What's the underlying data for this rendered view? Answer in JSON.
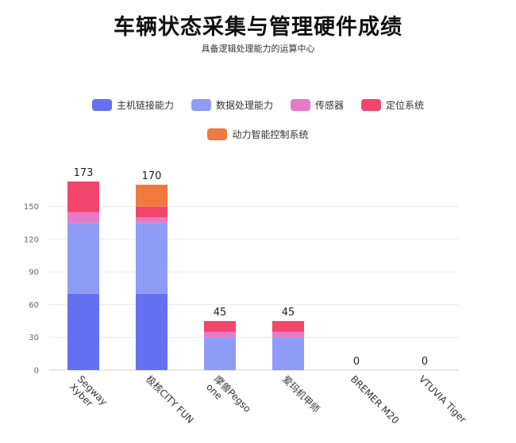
{
  "chart_data": {
    "type": "bar",
    "stacked": true,
    "title": "车辆状态采集与管理硬件成绩",
    "subtitle": "具备逻辑处理能力的运算中心",
    "categories": [
      "Segway Xyber",
      "极核CITY FUN",
      "摩兽Pegso one",
      "爱玛机甲师",
      "BREMER M20",
      "VTUVIA Tiger"
    ],
    "category_lines": [
      [
        "Segway",
        "Xyber"
      ],
      [
        "极核CITY FUN"
      ],
      [
        "摩兽Pegso",
        "one"
      ],
      [
        "爱玛机甲师"
      ],
      [
        "BREMER M20"
      ],
      [
        "VTUVIA Tiger"
      ]
    ],
    "series": [
      {
        "name": "主机链接能力",
        "color": "#6370ef",
        "values": [
          70,
          70,
          0,
          0,
          0,
          0
        ]
      },
      {
        "name": "数据处理能力",
        "color": "#8e9cf6",
        "values": [
          65,
          65,
          30,
          30,
          0,
          0
        ]
      },
      {
        "name": "传感器",
        "color": "#e67ac6",
        "values": [
          10,
          5,
          5,
          5,
          0,
          0
        ]
      },
      {
        "name": "定位系统",
        "color": "#f2466e",
        "values": [
          28,
          10,
          10,
          10,
          0,
          0
        ]
      },
      {
        "name": "动力智能控制系统",
        "color": "#f07a3e",
        "values": [
          0,
          20,
          0,
          0,
          0,
          0
        ]
      }
    ],
    "totals": [
      173,
      170,
      45,
      45,
      0,
      0
    ],
    "yticks": [
      0,
      30,
      60,
      90,
      120,
      150
    ],
    "ylim": [
      0,
      173
    ],
    "grid": true,
    "legend_position": "top"
  }
}
